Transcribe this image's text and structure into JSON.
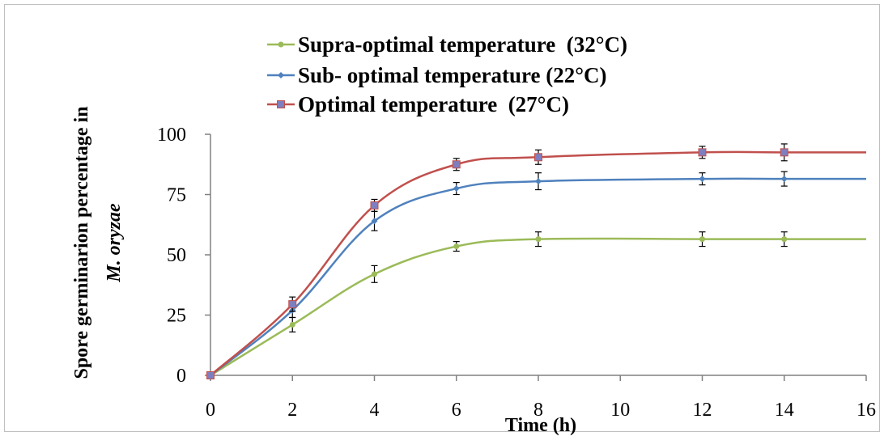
{
  "chart_data": {
    "type": "line",
    "title": "",
    "xlabel": "Time (h)",
    "ylabel_line1": "Spore germinarion percentage in",
    "ylabel_line2": "M. oryzae",
    "xlim": [
      0,
      16
    ],
    "ylim": [
      0,
      100
    ],
    "x_ticks": [
      "0",
      "2",
      "4",
      "6",
      "8",
      "10",
      "12",
      "14",
      "16"
    ],
    "y_ticks": [
      "0",
      "25",
      "50",
      "75",
      "100"
    ],
    "grid": false,
    "legend_position": "top",
    "x": [
      0,
      2,
      4,
      6,
      8,
      12,
      14
    ],
    "series": [
      {
        "name": "Supra-optimal temperature  (32°C)",
        "color": "#9bbb59",
        "marker": "circle",
        "values": [
          0,
          21,
          42,
          53.5,
          56.5,
          56.5,
          56.5
        ],
        "errors": [
          0.5,
          3,
          3.5,
          2,
          3,
          3,
          3
        ],
        "extends_to": 16,
        "end_value": 56.5
      },
      {
        "name": "Sub- optimal temperature (22°C)",
        "color": "#4f81bd",
        "marker": "diamond",
        "values": [
          0,
          27,
          64,
          77.5,
          80.5,
          81.5,
          81.5
        ],
        "errors": [
          0.5,
          3,
          4,
          2.5,
          3.5,
          2.5,
          3
        ],
        "extends_to": 16,
        "end_value": 81.5
      },
      {
        "name": "Optimal temperature  (27°C)",
        "color": "#c0504d",
        "marker": "square",
        "values": [
          0,
          29.5,
          70.5,
          87.5,
          90.5,
          92.5,
          92.5
        ],
        "errors": [
          0.5,
          3,
          2.5,
          2.5,
          3,
          2.5,
          3.5
        ],
        "extends_to": 16,
        "end_value": 92.5
      }
    ]
  }
}
